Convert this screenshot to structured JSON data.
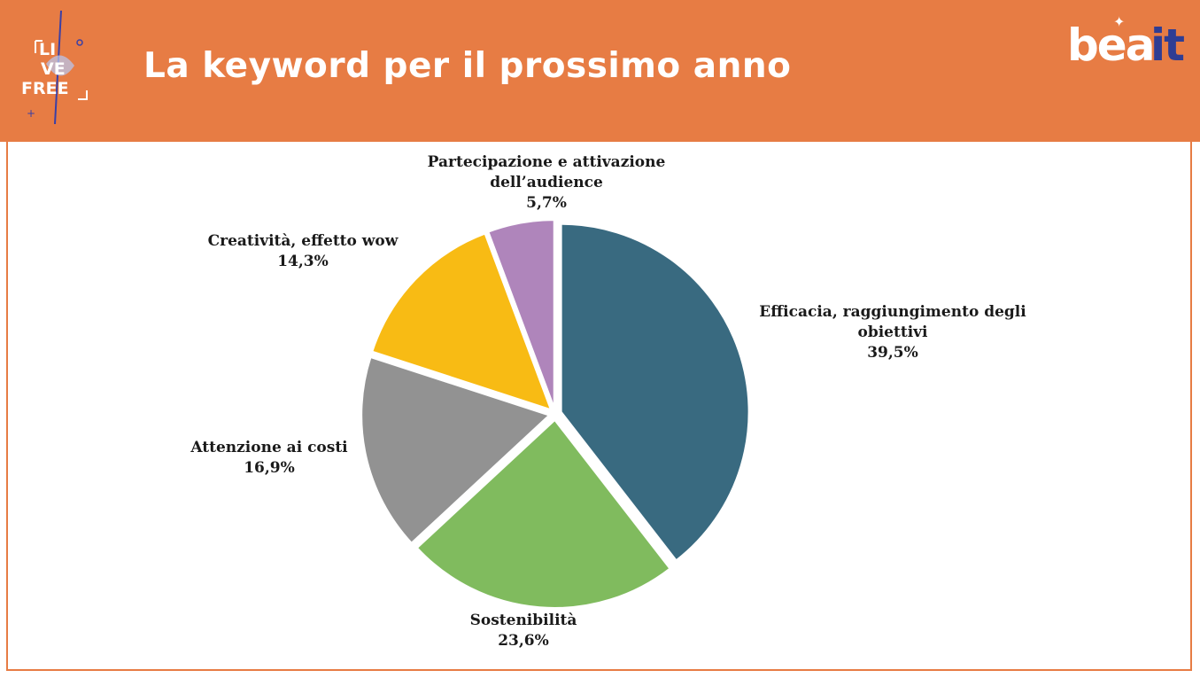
{
  "header": {
    "title": "La keyword per il prossimo anno",
    "left_logo_text": [
      "LI",
      "VE",
      "FREE"
    ],
    "right_logo_text": {
      "main": "bea",
      "accent": "it"
    },
    "bg_color": "#E77C44"
  },
  "chart_data": {
    "type": "pie",
    "title": "",
    "slices": [
      {
        "label_lines": [
          "Efficacia, raggiungimento degli",
          "obiettivi"
        ],
        "value": 39.5,
        "value_label": "39,5%",
        "color": "#396A80"
      },
      {
        "label_lines": [
          "Sostenibilità"
        ],
        "value": 23.6,
        "value_label": "23,6%",
        "color": "#80BB5E"
      },
      {
        "label_lines": [
          "Attenzione ai costi"
        ],
        "value": 16.9,
        "value_label": "16,9%",
        "color": "#929292"
      },
      {
        "label_lines": [
          "Creatività, effetto wow"
        ],
        "value": 14.3,
        "value_label": "14,3%",
        "color": "#F8BB14"
      },
      {
        "label_lines": [
          "Partecipazione e attivazione",
          "dell’audience"
        ],
        "value": 5.7,
        "value_label": "5,7%",
        "color": "#AF85BB"
      }
    ],
    "start_angle_deg": 0,
    "direction": "clockwise",
    "exploded": true
  }
}
